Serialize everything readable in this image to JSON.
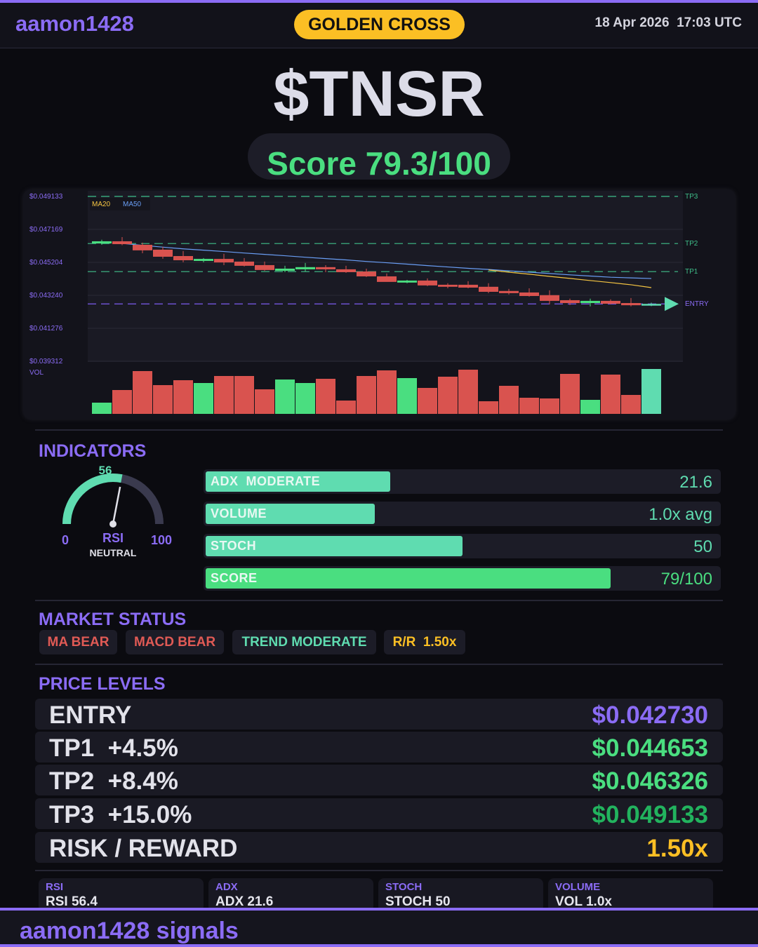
{
  "header": {
    "brand": "aamon1428",
    "badge": "GOLDEN CROSS",
    "datetime": "18 Apr 2026  17:03 UTC"
  },
  "ticker": "$TNSR",
  "score_text": "Score 79.3/100",
  "colors": {
    "accent": "#8b6cf5",
    "green": "#4ade80",
    "teal": "#5fdcb0",
    "red": "#d9534f",
    "yellow": "#fbbf24",
    "ma20": "#f5c542",
    "ma50": "#6a9ef5"
  },
  "chart_data": {
    "type": "candlestick",
    "y_ticks": [
      "$0.049133",
      "$0.047169",
      "$0.045204",
      "$0.043240",
      "$0.041276",
      "$0.039312"
    ],
    "ylim": [
      0.039312,
      0.049133
    ],
    "grid": true,
    "legend": [
      "MA20",
      "MA50"
    ],
    "volume_label": "VOL",
    "levels": [
      {
        "name": "TP3",
        "value": 0.049133
      },
      {
        "name": "TP2",
        "value": 0.046326
      },
      {
        "name": "TP1",
        "value": 0.044653
      },
      {
        "name": "ENTRY",
        "value": 0.04273
      }
    ],
    "candles": [
      {
        "o": 0.04633,
        "h": 0.04655,
        "l": 0.04625,
        "c": 0.04646
      },
      {
        "o": 0.04646,
        "h": 0.04671,
        "l": 0.04623,
        "c": 0.04629
      },
      {
        "o": 0.04625,
        "h": 0.04638,
        "l": 0.04575,
        "c": 0.04592
      },
      {
        "o": 0.04596,
        "h": 0.04613,
        "l": 0.04542,
        "c": 0.04554
      },
      {
        "o": 0.04558,
        "h": 0.04588,
        "l": 0.04521,
        "c": 0.04533
      },
      {
        "o": 0.04529,
        "h": 0.04546,
        "l": 0.04521,
        "c": 0.04541
      },
      {
        "o": 0.04541,
        "h": 0.04571,
        "l": 0.04504,
        "c": 0.0452
      },
      {
        "o": 0.04525,
        "h": 0.04546,
        "l": 0.04496,
        "c": 0.045
      },
      {
        "o": 0.04504,
        "h": 0.04525,
        "l": 0.0447,
        "c": 0.04475
      },
      {
        "o": 0.0447,
        "h": 0.045,
        "l": 0.04462,
        "c": 0.04483
      },
      {
        "o": 0.04479,
        "h": 0.04517,
        "l": 0.04466,
        "c": 0.04492
      },
      {
        "o": 0.04492,
        "h": 0.04504,
        "l": 0.04462,
        "c": 0.04479
      },
      {
        "o": 0.04479,
        "h": 0.045,
        "l": 0.04458,
        "c": 0.04462
      },
      {
        "o": 0.04466,
        "h": 0.04483,
        "l": 0.04433,
        "c": 0.04437
      },
      {
        "o": 0.04437,
        "h": 0.04454,
        "l": 0.04412,
        "c": 0.04404
      },
      {
        "o": 0.044,
        "h": 0.04416,
        "l": 0.04396,
        "c": 0.04412
      },
      {
        "o": 0.04412,
        "h": 0.04425,
        "l": 0.04379,
        "c": 0.04383
      },
      {
        "o": 0.04387,
        "h": 0.04396,
        "l": 0.04366,
        "c": 0.04375
      },
      {
        "o": 0.04387,
        "h": 0.04408,
        "l": 0.04366,
        "c": 0.0437
      },
      {
        "o": 0.04375,
        "h": 0.04396,
        "l": 0.04337,
        "c": 0.04345
      },
      {
        "o": 0.0435,
        "h": 0.04362,
        "l": 0.04329,
        "c": 0.04337
      },
      {
        "o": 0.04341,
        "h": 0.04366,
        "l": 0.04316,
        "c": 0.0432
      },
      {
        "o": 0.04325,
        "h": 0.04354,
        "l": 0.0427,
        "c": 0.04291
      },
      {
        "o": 0.04295,
        "h": 0.04304,
        "l": 0.04266,
        "c": 0.04278
      },
      {
        "o": 0.04278,
        "h": 0.04304,
        "l": 0.04258,
        "c": 0.04291
      },
      {
        "o": 0.04291,
        "h": 0.043,
        "l": 0.0427,
        "c": 0.04274
      },
      {
        "o": 0.04278,
        "h": 0.04308,
        "l": 0.04258,
        "c": 0.04265
      },
      {
        "o": 0.04266,
        "h": 0.0428,
        "l": 0.0426,
        "c": 0.04273
      }
    ],
    "ma50": [
      null,
      0.04633,
      0.04622,
      0.04611,
      0.04601,
      0.04593,
      0.04585,
      0.04576,
      0.04568,
      0.0456,
      0.04551,
      0.04543,
      0.04535,
      0.04526,
      0.04518,
      0.0451,
      0.04501,
      0.04493,
      0.04485,
      0.04478,
      0.0447,
      0.04462,
      0.04454,
      0.04446,
      0.04439,
      0.04432,
      0.04428,
      0.04424
    ],
    "ma20": [
      null,
      null,
      null,
      null,
      null,
      null,
      null,
      null,
      null,
      null,
      null,
      null,
      null,
      null,
      null,
      null,
      null,
      null,
      null,
      0.04475,
      0.04462,
      0.0445,
      0.04437,
      0.04425,
      0.04412,
      0.044,
      0.04387,
      0.0437
    ],
    "volume": [
      16,
      34,
      61,
      41,
      48,
      44,
      54,
      54,
      35,
      49,
      44,
      50,
      19,
      54,
      62,
      51,
      37,
      53,
      63,
      18,
      40,
      23,
      22,
      57,
      20,
      56,
      27,
      64
    ]
  },
  "indicators": {
    "title": "INDICATORS",
    "rsi": {
      "value": 56,
      "value_label": "56",
      "min_label": "0",
      "max_label": "100",
      "name": "RSI",
      "state": "NEUTRAL"
    },
    "bars": [
      {
        "label": "ADX  MODERATE",
        "value": "21.6",
        "fill": 0.36
      },
      {
        "label": "VOLUME",
        "value": "1.0x avg",
        "fill": 0.33
      },
      {
        "label": "STOCH",
        "value": "50",
        "fill": 0.5
      },
      {
        "label": "SCORE",
        "value": "79/100",
        "fill": 0.79
      }
    ]
  },
  "market_status": {
    "title": "MARKET STATUS",
    "tags": [
      "MA BEAR",
      "MACD BEAR",
      "TREND MODERATE",
      "R/R  1.50x"
    ]
  },
  "price_levels": {
    "title": "PRICE LEVELS",
    "rows": [
      {
        "label": "ENTRY",
        "value": "$0.042730"
      },
      {
        "label": "TP1  +4.5%",
        "value": "$0.044653"
      },
      {
        "label": "TP2  +8.4%",
        "value": "$0.046326"
      },
      {
        "label": "TP3  +15.0%",
        "value": "$0.049133"
      },
      {
        "label": "RISK / REWARD",
        "value": "1.50x"
      }
    ]
  },
  "cards": [
    {
      "label": "RSI",
      "value": "RSI 56.4"
    },
    {
      "label": "ADX",
      "value": "ADX 21.6"
    },
    {
      "label": "STOCH",
      "value": "STOCH 50"
    },
    {
      "label": "VOLUME",
      "value": "VOL 1.0x"
    }
  ],
  "footer": "aamon1428 signals"
}
